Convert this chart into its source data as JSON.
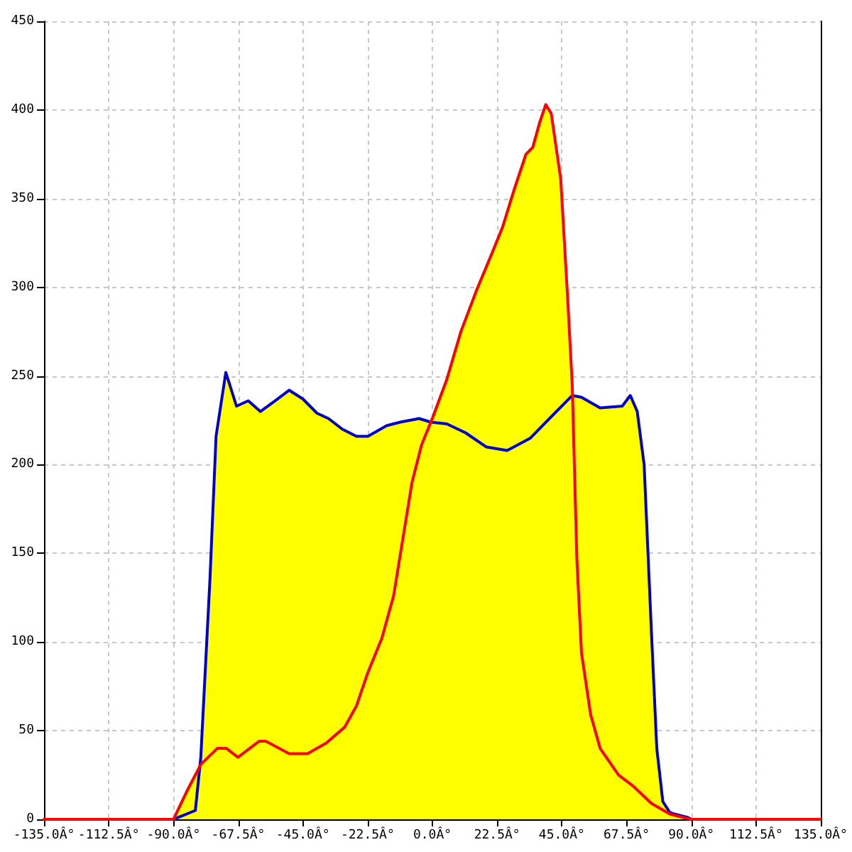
{
  "chart_data": {
    "type": "area",
    "series": [
      {
        "color": "#ffff00",
        "x": [
          -90,
          -85.3,
          -80.7,
          -80.5,
          -77.3,
          -75.2,
          -71.8,
          -68.1,
          -64.0,
          -59.8,
          -54.7,
          -49.8,
          -45.0,
          -40.1,
          -36.1,
          -31.3,
          -26.4,
          -22.4,
          -15.9,
          -11.1,
          -4.6,
          -0.6,
          0.2,
          5.0,
          9.9,
          15.5,
          20.4,
          24.4,
          28.4,
          32.5,
          34.9,
          37.3,
          39.4,
          41.3,
          44.6,
          47.0,
          48.7,
          51.8,
          58.3,
          66.0,
          68.8,
          71.2,
          73.6,
          76.1,
          78.0,
          80.1,
          82.5,
          84.1,
          88.9,
          90
        ],
        "values": [
          0,
          16,
          30,
          35,
          136,
          216,
          252,
          233,
          236,
          230,
          236,
          242,
          237,
          229,
          226,
          220,
          216,
          216,
          222,
          224,
          226,
          224,
          227,
          248,
          275,
          299,
          318,
          334,
          355,
          375,
          379,
          393,
          403,
          398,
          361,
          294,
          239,
          238,
          232,
          233,
          239,
          230,
          200,
          107,
          40,
          10,
          4,
          3,
          1,
          0
        ]
      },
      {
        "type": "line",
        "color": "#0000cc",
        "x": [
          -90,
          -82.4,
          -80.5,
          -77.3,
          -75.2,
          -71.8,
          -68.1,
          -64.0,
          -59.8,
          -54.7,
          -49.8,
          -45.0,
          -40.1,
          -36.1,
          -31.3,
          -26.4,
          -22.4,
          -15.9,
          -11.1,
          -4.6,
          -0.6,
          5.0,
          11.5,
          18.7,
          26.0,
          34.1,
          41.3,
          48.6,
          51.8,
          58.3,
          66.0,
          68.8,
          71.2,
          73.6,
          76.1,
          78.0,
          80.1,
          82.5,
          84.1,
          88.9,
          90
        ],
        "values": [
          0,
          5,
          35,
          136,
          216,
          252,
          233,
          236,
          230,
          236,
          242,
          237,
          229,
          226,
          220,
          216,
          216,
          222,
          224,
          226,
          224,
          223,
          218,
          210,
          208,
          215,
          227,
          239,
          238,
          232,
          233,
          239,
          230,
          200,
          107,
          40,
          10,
          4,
          3,
          1,
          0
        ]
      },
      {
        "type": "line",
        "color": "#ff0000",
        "x": [
          -135,
          -90,
          -85.3,
          -80.5,
          -74.8,
          -71.6,
          -67.6,
          -60.3,
          -57.9,
          -49.8,
          -43.4,
          -36.9,
          -30.5,
          -26.4,
          -22.4,
          -17.6,
          -13.5,
          -10.3,
          -7.1,
          -3.8,
          0.2,
          5.0,
          9.9,
          15.5,
          20.4,
          24.4,
          28.4,
          32.5,
          34.9,
          37.3,
          39.4,
          41.3,
          44.6,
          47.0,
          48.6,
          50.2,
          51.8,
          55.0,
          58.3,
          64.7,
          69.6,
          76.1,
          82.5,
          87.3,
          90,
          135
        ],
        "values": [
          0,
          0,
          16,
          31,
          40,
          40,
          35,
          44,
          44,
          37,
          37,
          43,
          52,
          64,
          83,
          102,
          126,
          158,
          190,
          211,
          227,
          248,
          275,
          299,
          318,
          334,
          355,
          375,
          379,
          393,
          403,
          398,
          361,
          294,
          245,
          147,
          94,
          59,
          40,
          25,
          19,
          9,
          3,
          1,
          0,
          0
        ]
      }
    ],
    "xlim": [
      -135,
      135
    ],
    "xticks": [
      {
        "value": -135,
        "label": "-135.0Â°"
      },
      {
        "value": -112.5,
        "label": "-112.5Â°"
      },
      {
        "value": -90,
        "label": "-90.0Â°"
      },
      {
        "value": -67.5,
        "label": "-67.5Â°"
      },
      {
        "value": -45,
        "label": "-45.0Â°"
      },
      {
        "value": -22.5,
        "label": "-22.5Â°"
      },
      {
        "value": 0,
        "label": "0.0Â°"
      },
      {
        "value": 22.5,
        "label": "22.5Â°"
      },
      {
        "value": 45,
        "label": "45.0Â°"
      },
      {
        "value": 67.5,
        "label": "67.5Â°"
      },
      {
        "value": 90,
        "label": "90.0Â°"
      },
      {
        "value": 112.5,
        "label": "112.5Â°"
      },
      {
        "value": 135,
        "label": "135.0Â°"
      }
    ],
    "ylim": [
      0,
      450
    ],
    "yticks": [
      0,
      50,
      100,
      150,
      200,
      250,
      300,
      350,
      400,
      450
    ],
    "grid": true,
    "marker": "none"
  }
}
